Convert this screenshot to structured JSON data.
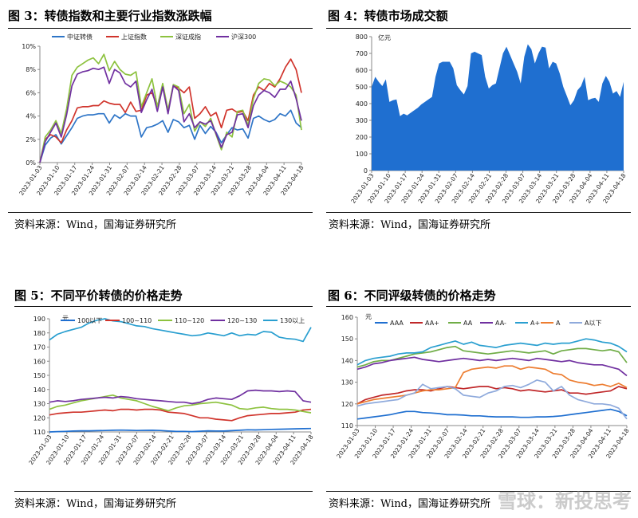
{
  "figures": [
    {
      "title": "图 3：转债指数和主要行业指数涨跌幅",
      "source": "资料来源：Wind，国海证券研究所"
    },
    {
      "title": "图 4：转债市场成交额",
      "source": "资料来源：Wind，国海证券研究所"
    },
    {
      "title": "图 5：不同平价转债的价格走势",
      "source": "资料来源：Wind，国海证券研究所"
    },
    {
      "title": "图 6：不同评级转债的价格走势",
      "source": "资料来源：Wind，国海证券研究所"
    }
  ],
  "watermark": "雪球：新投思考",
  "chart_data": [
    {
      "type": "line",
      "ylim": [
        0,
        10
      ],
      "yticks": [
        "0%",
        "2%",
        "4%",
        "6%",
        "8%",
        "10%"
      ],
      "x_tick_labels": [
        "2023-01-03",
        "2023-01-10",
        "2023-01-17",
        "2023-01-24",
        "2023-01-31",
        "2023-02-07",
        "2023-02-14",
        "2023-02-21",
        "2023-02-28",
        "2023-03-07",
        "2023-03-14",
        "2023-03-21",
        "2023-03-28",
        "2023-04-04",
        "2023-04-11",
        "2023-04-18"
      ],
      "legend": "top",
      "grid": false,
      "series": [
        {
          "name": "中证转债",
          "color": "#2E75C7",
          "values": [
            0,
            1.5,
            2.1,
            2.4,
            1.6,
            2.3,
            3.0,
            3.8,
            4.0,
            4.1,
            4.1,
            4.2,
            4.2,
            3.4,
            4.1,
            3.8,
            4.2,
            4.0,
            4.0,
            2.2,
            3.0,
            3.1,
            3.3,
            3.6,
            2.6,
            3.7,
            3.5,
            3.0,
            3.2,
            2.0,
            3.2,
            2.5,
            3.1,
            2.6,
            1.7,
            2.4,
            3.0,
            2.8,
            2.9,
            2.1,
            3.8,
            4.0,
            3.7,
            3.5,
            3.7,
            4.2,
            4.0,
            4.5,
            3.4,
            3.0
          ]
        },
        {
          "name": "上证指数",
          "color": "#D0342C",
          "values": [
            0,
            2.0,
            2.4,
            2.2,
            1.7,
            2.8,
            3.6,
            4.7,
            4.8,
            4.8,
            4.9,
            4.9,
            5.3,
            5.1,
            5.0,
            5.0,
            4.3,
            5.2,
            4.4,
            4.5,
            5.8,
            6.0,
            4.8,
            6.5,
            4.5,
            6.6,
            6.4,
            6.0,
            6.5,
            3.8,
            4.2,
            4.8,
            4.0,
            4.3,
            3.0,
            4.5,
            4.6,
            4.3,
            4.4,
            3.6,
            5.8,
            6.5,
            6.2,
            6.8,
            6.5,
            7.2,
            8.2,
            8.9,
            8.0,
            6.0
          ]
        },
        {
          "name": "深证成指",
          "color": "#8DC23F",
          "values": [
            0,
            2.2,
            2.8,
            3.6,
            2.5,
            4.6,
            7.5,
            8.2,
            8.5,
            8.8,
            9.0,
            8.5,
            9.3,
            7.9,
            8.7,
            8.0,
            7.6,
            7.5,
            7.8,
            4.8,
            6.0,
            7.2,
            4.8,
            6.8,
            4.5,
            6.7,
            6.5,
            4.2,
            5.0,
            2.7,
            3.5,
            3.1,
            3.8,
            2.4,
            1.1,
            2.6,
            2.2,
            4.4,
            4.5,
            3.2,
            5.5,
            6.8,
            7.2,
            7.1,
            6.6,
            7.0,
            6.8,
            6.5,
            5.8,
            2.8
          ]
        },
        {
          "name": "沪深300",
          "color": "#7030A0",
          "values": [
            0,
            1.8,
            2.6,
            3.4,
            2.2,
            4.1,
            6.6,
            7.6,
            7.8,
            7.9,
            8.1,
            8.0,
            8.2,
            6.8,
            8.0,
            7.7,
            6.8,
            6.5,
            7.0,
            4.3,
            5.4,
            6.3,
            4.4,
            6.5,
            4.2,
            6.6,
            6.2,
            3.5,
            4.2,
            3.0,
            3.5,
            3.3,
            3.6,
            2.5,
            1.3,
            2.4,
            2.6,
            4.1,
            4.2,
            3.0,
            4.9,
            5.8,
            6.2,
            6.0,
            5.6,
            6.3,
            6.3,
            7.0,
            5.5,
            3.6
          ]
        }
      ]
    },
    {
      "type": "area",
      "unit": "亿元",
      "ylim": [
        0,
        800
      ],
      "yticks": [
        "0",
        "100",
        "200",
        "300",
        "400",
        "500",
        "600",
        "700",
        "800"
      ],
      "x_tick_labels": [
        "2023-01-03",
        "2023-01-10",
        "2023-01-17",
        "2023-01-24",
        "2023-01-31",
        "2023-02-07",
        "2023-02-14",
        "2023-02-21",
        "2023-02-28",
        "2023-03-07",
        "2023-03-14",
        "2023-03-21",
        "2023-03-28",
        "2023-04-04",
        "2023-04-11",
        "2023-04-18"
      ],
      "color": "#1F6FD0",
      "values": [
        500,
        560,
        530,
        505,
        545,
        410,
        420,
        425,
        325,
        340,
        330,
        345,
        360,
        375,
        395,
        410,
        425,
        440,
        560,
        640,
        650,
        650,
        650,
        610,
        510,
        480,
        455,
        505,
        700,
        710,
        700,
        690,
        560,
        490,
        510,
        520,
        610,
        700,
        740,
        690,
        640,
        590,
        520,
        680,
        755,
        725,
        640,
        700,
        740,
        735,
        610,
        650,
        640,
        580,
        500,
        445,
        390,
        420,
        480,
        505,
        560,
        420,
        430,
        435,
        410,
        520,
        565,
        530,
        460,
        475,
        440,
        530
      ]
    },
    {
      "type": "line",
      "unit": "元",
      "ylim": [
        110,
        190
      ],
      "yticks": [
        "110",
        "120",
        "130",
        "140",
        "150",
        "160",
        "170",
        "180",
        "190"
      ],
      "x_tick_labels": [
        "2023-01-03",
        "2023-01-10",
        "2023-01-17",
        "2023-01-24",
        "2023-01-31",
        "2023-02-07",
        "2023-02-14",
        "2023-02-21",
        "2023-02-28",
        "2023-03-07",
        "2023-03-14",
        "2023-03-21",
        "2023-03-28",
        "2023-04-04",
        "2023-04-11",
        "2023-04-18"
      ],
      "legend": "top",
      "grid": false,
      "series": [
        {
          "name": "100以下",
          "color": "#1F6FD0",
          "values": [
            110.0,
            110.2,
            110.4,
            110.6,
            110.8,
            110.8,
            110.9,
            111.0,
            111.2,
            111.3,
            111.2,
            111.0,
            111.1,
            111.2,
            111.0,
            110.7,
            110.4,
            110.4,
            110.2,
            110.5,
            110.8,
            110.7,
            110.6,
            110.9,
            111.2,
            111.5,
            111.4,
            111.6,
            111.8,
            111.9,
            112.0,
            112.2,
            112.3,
            112.4
          ]
        },
        {
          "name": "100~110",
          "color": "#D0342C",
          "values": [
            122.0,
            123.0,
            123.5,
            124.0,
            124.0,
            124.5,
            125.0,
            125.5,
            125.0,
            126.0,
            126.0,
            125.5,
            126.0,
            126.0,
            125.5,
            124.0,
            123.5,
            123.0,
            121.5,
            120.0,
            120.0,
            119.0,
            118.5,
            118.0,
            120.0,
            121.5,
            122.0,
            122.5,
            123.0,
            123.0,
            123.5,
            124.0,
            125.5,
            126.0
          ]
        },
        {
          "name": "110~120",
          "color": "#8DC23F",
          "values": [
            126.0,
            128.0,
            129.0,
            130.5,
            132.0,
            133.0,
            134.0,
            135.0,
            136.0,
            134.0,
            133.0,
            132.0,
            130.0,
            128.0,
            126.5,
            125.0,
            127.0,
            128.5,
            129.0,
            130.0,
            130.5,
            131.0,
            130.0,
            129.0,
            126.5,
            126.0,
            127.0,
            127.5,
            126.5,
            126.0,
            126.0,
            125.5,
            124.5,
            123.5
          ]
        },
        {
          "name": "120~130",
          "color": "#7030A0",
          "values": [
            131.0,
            132.0,
            131.5,
            132.0,
            133.0,
            133.5,
            134.0,
            134.5,
            134.0,
            135.0,
            134.5,
            133.5,
            133.0,
            132.5,
            132.0,
            131.5,
            131.0,
            131.0,
            130.0,
            131.0,
            133.0,
            134.0,
            133.5,
            133.0,
            135.5,
            139.0,
            139.5,
            139.0,
            139.0,
            138.5,
            139.0,
            138.5,
            132.0,
            131.0
          ]
        },
        {
          "name": "130以上",
          "color": "#2A9FD0",
          "values": [
            175.0,
            179.0,
            181.0,
            182.5,
            184.0,
            187.0,
            189.0,
            190.0,
            188.5,
            188.0,
            186.5,
            185.0,
            184.5,
            183.0,
            182.0,
            181.0,
            180.0,
            179.0,
            178.0,
            178.5,
            180.0,
            179.0,
            178.0,
            180.0,
            178.0,
            179.0,
            178.5,
            181.0,
            180.5,
            177.0,
            176.0,
            175.5,
            174.0,
            184.0
          ]
        }
      ]
    },
    {
      "type": "line",
      "unit": "元",
      "ylim": [
        110,
        160
      ],
      "yticks": [
        "110",
        "120",
        "130",
        "140",
        "150",
        "160"
      ],
      "x_tick_labels": [
        "2023-01-03",
        "2023-01-10",
        "2023-01-17",
        "2023-01-24",
        "2023-01-31",
        "2023-02-07",
        "2023-02-14",
        "2023-02-21",
        "2023-02-28",
        "2023-03-07",
        "2023-03-14",
        "2023-03-21",
        "2023-03-28",
        "2023-04-04",
        "2023-04-11",
        "2023-04-18"
      ],
      "legend": "top",
      "grid": false,
      "series": [
        {
          "name": "AAA",
          "color": "#1F6FD0",
          "values": [
            113.0,
            113.5,
            114.0,
            114.5,
            115.0,
            115.8,
            116.5,
            116.5,
            116.0,
            115.8,
            115.5,
            115.0,
            115.0,
            114.8,
            114.5,
            114.5,
            114.2,
            114.0,
            114.0,
            114.0,
            113.8,
            113.8,
            114.0,
            114.0,
            114.2,
            114.5,
            115.0,
            115.5,
            116.0,
            116.5,
            117.0,
            117.5,
            116.5,
            114.5
          ]
        },
        {
          "name": "AA+",
          "color": "#C0282A",
          "values": [
            120.0,
            122.0,
            123.0,
            124.0,
            124.5,
            125.0,
            126.0,
            126.5,
            126.5,
            126.0,
            127.0,
            128.0,
            127.5,
            127.0,
            127.5,
            128.0,
            128.0,
            127.0,
            127.5,
            127.0,
            126.0,
            126.5,
            126.0,
            125.5,
            126.0,
            126.5,
            125.0,
            125.0,
            124.5,
            125.0,
            125.5,
            126.0,
            128.0,
            127.0
          ]
        },
        {
          "name": "AA",
          "color": "#70AD47",
          "values": [
            137.0,
            138.0,
            139.5,
            140.0,
            140.0,
            141.0,
            142.0,
            143.0,
            143.5,
            144.0,
            145.0,
            146.0,
            146.5,
            144.5,
            144.0,
            143.5,
            143.0,
            143.5,
            144.0,
            144.5,
            144.0,
            143.5,
            144.0,
            144.5,
            143.0,
            144.5,
            145.0,
            145.5,
            145.5,
            145.0,
            144.5,
            145.0,
            144.0,
            139.0
          ]
        },
        {
          "name": "AA-",
          "color": "#7030A0",
          "values": [
            136.0,
            137.0,
            138.5,
            139.0,
            140.0,
            140.5,
            141.0,
            141.5,
            140.5,
            140.0,
            139.5,
            140.0,
            140.5,
            141.0,
            140.5,
            140.0,
            140.5,
            140.0,
            140.5,
            141.0,
            140.5,
            140.0,
            141.0,
            140.5,
            140.0,
            139.5,
            140.0,
            139.0,
            138.5,
            138.0,
            138.0,
            137.0,
            136.0,
            133.0
          ]
        },
        {
          "name": "A+",
          "color": "#2A9FD0",
          "values": [
            138.0,
            140.0,
            141.0,
            141.5,
            142.0,
            143.0,
            143.5,
            143.5,
            144.0,
            146.0,
            147.0,
            148.0,
            149.0,
            147.5,
            148.5,
            147.0,
            146.5,
            146.0,
            147.0,
            147.5,
            148.0,
            147.5,
            147.0,
            148.0,
            147.5,
            148.0,
            148.0,
            149.0,
            150.0,
            149.5,
            148.5,
            148.0,
            146.5,
            144.0
          ]
        },
        {
          "name": "A",
          "color": "#ED7D31",
          "values": [
            120.0,
            121.0,
            122.0,
            122.5,
            123.0,
            123.5,
            124.0,
            125.0,
            126.0,
            126.5,
            126.5,
            127.0,
            127.5,
            134.5,
            136.0,
            136.5,
            137.0,
            136.5,
            137.5,
            137.5,
            136.0,
            137.0,
            136.5,
            136.0,
            134.0,
            133.5,
            131.0,
            130.0,
            129.5,
            128.5,
            129.0,
            128.0,
            129.5,
            127.5
          ]
        },
        {
          "name": "A以下",
          "color": "#8FAADC",
          "values": [
            119.0,
            120.0,
            120.5,
            121.0,
            121.5,
            122.0,
            124.0,
            125.0,
            129.0,
            127.0,
            127.5,
            128.0,
            127.0,
            124.0,
            123.5,
            123.0,
            125.0,
            126.0,
            128.0,
            128.5,
            127.5,
            129.0,
            131.0,
            130.0,
            126.0,
            128.0,
            124.0,
            122.0,
            121.0,
            120.0,
            120.0,
            119.5,
            118.0,
            113.0
          ]
        }
      ]
    }
  ]
}
